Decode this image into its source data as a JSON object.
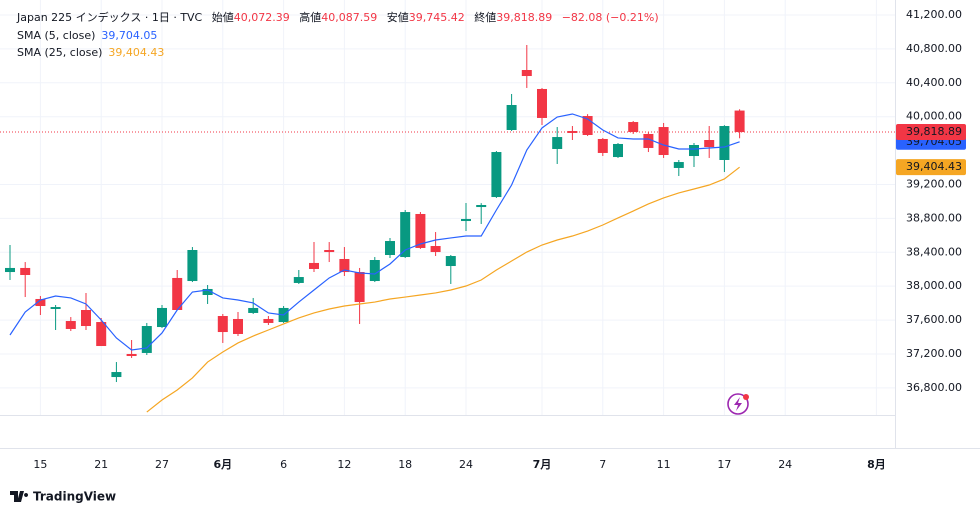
{
  "chart_data": {
    "type": "candlestick",
    "header": {
      "symbol": "Japan 225 インデックス · 1日 · TVC",
      "open_label": "始値",
      "open_value": "40,072.39",
      "high_label": "高値",
      "high_value": "40,087.59",
      "low_label": "安値",
      "low_value": "39,745.42",
      "close_label": "終値",
      "close_value": "39,818.89",
      "change": "−82.08 (−0.21%)"
    },
    "categories": [
      null,
      null,
      "15",
      null,
      null,
      null,
      "21",
      null,
      null,
      null,
      "27",
      null,
      null,
      null,
      "6月",
      null,
      null,
      null,
      "6",
      null,
      null,
      null,
      "12",
      null,
      null,
      null,
      "18",
      null,
      null,
      null,
      "24",
      null,
      null,
      null,
      null,
      "7月",
      null,
      null,
      null,
      "7",
      null,
      null,
      null,
      "11",
      null,
      null,
      null,
      "17",
      null,
      null,
      null,
      "24",
      null,
      null,
      null,
      null,
      null,
      "8月"
    ],
    "open": [
      38167,
      38215,
      37849,
      37731,
      37589,
      37719,
      37577,
      36928,
      37200,
      37212,
      37518,
      38097,
      38061,
      37896,
      37648,
      37613,
      37684,
      37613,
      37577,
      38038,
      38274,
      38427,
      38321,
      38167,
      38061,
      38368,
      38344,
      38852,
      38474,
      38238,
      38769,
      38934,
      39052,
      39843,
      40551,
      40327,
      39619,
      39831,
      40008,
      39737,
      39524,
      39937,
      39796,
      39878,
      39395,
      39536,
      39725,
      39489,
      40072.39,
      null,
      null,
      null,
      null,
      null,
      null,
      null,
      null,
      null
    ],
    "high": [
      38486,
      38285,
      37884,
      37778,
      37636,
      37920,
      37625,
      37105,
      37365,
      37566,
      37778,
      38191,
      38462,
      38014,
      37672,
      37695,
      37861,
      37648,
      37766,
      38191,
      38521,
      38521,
      38462,
      38215,
      38344,
      38569,
      38899,
      38875,
      38639,
      38368,
      38982,
      38980,
      39595,
      40268,
      40846,
      40339,
      39878,
      39890,
      40030,
      39749,
      39690,
      39949,
      39819,
      39926,
      39489,
      39690,
      39890,
      39900,
      40087.59,
      null,
      null,
      null,
      null,
      null,
      null,
      null,
      null,
      null
    ],
    "low": [
      38073,
      37872,
      37660,
      37483,
      37471,
      37483,
      37294,
      36869,
      37153,
      37188,
      37507,
      37719,
      38049,
      37790,
      37330,
      37412,
      37672,
      37542,
      37566,
      38026,
      38167,
      38285,
      38120,
      37554,
      38049,
      38333,
      38333,
      38440,
      38356,
      38026,
      38651,
      38734,
      39041,
      39831,
      40339,
      39902,
      39442,
      39725,
      39772,
      39536,
      39513,
      39796,
      39583,
      39513,
      39300,
      39406,
      39513,
      39347,
      39745.42,
      null,
      null,
      null,
      null,
      null,
      null,
      null,
      null,
      null
    ],
    "close": [
      38215,
      38132,
      37766,
      37754,
      37495,
      37530,
      37294,
      36987,
      37176,
      37530,
      37743,
      37719,
      38427,
      37967,
      37459,
      37436,
      37743,
      37566,
      37743,
      38108,
      38203,
      38403,
      38167,
      37813,
      38309,
      38533,
      38875,
      38451,
      38403,
      38356,
      38793,
      38958,
      39583,
      40138,
      40480,
      39985,
      39760,
      39808,
      39784,
      39572,
      39678,
      39819,
      39631,
      39548,
      39465,
      39666,
      39642,
      39890,
      39818.89,
      null,
      null,
      null,
      null,
      null,
      null,
      null,
      null,
      null
    ],
    "up_color": "#089981",
    "down_color": "#f23645",
    "last_price_label": "39,818.89",
    "series": [
      {
        "name": "SMA (5, close)",
        "color": "#2962ff",
        "last_label": "39,704.05",
        "values": [
          37424,
          37695,
          37837,
          37884,
          37861,
          37790,
          37601,
          37389,
          37247,
          37271,
          37448,
          37719,
          37931,
          37955,
          37861,
          37837,
          37802,
          37684,
          37660,
          37813,
          37955,
          38097,
          38191,
          38156,
          38144,
          38262,
          38427,
          38498,
          38545,
          38569,
          38592,
          38592,
          38899,
          39194,
          39607,
          39867,
          39996,
          40032,
          39973,
          39843,
          39749,
          39737,
          39737,
          39666,
          39619,
          39619,
          39631,
          39642,
          39704.05,
          null,
          null,
          null,
          null,
          null,
          null,
          null,
          null,
          null
        ]
      },
      {
        "name": "SMA (25, close)",
        "color": "#f5a623",
        "last_label": "39,404.43",
        "values": [
          null,
          null,
          null,
          null,
          null,
          null,
          null,
          null,
          null,
          36515,
          36657,
          36775,
          36917,
          37105,
          37223,
          37330,
          37412,
          37483,
          37554,
          37625,
          37684,
          37731,
          37766,
          37790,
          37813,
          37849,
          37872,
          37896,
          37920,
          37955,
          38002,
          38073,
          38191,
          38297,
          38403,
          38486,
          38545,
          38592,
          38651,
          38722,
          38805,
          38887,
          38970,
          39041,
          39100,
          39147,
          39194,
          39265,
          39404.43,
          null,
          null,
          null,
          null,
          null,
          null,
          null,
          null,
          null
        ]
      }
    ],
    "ylim": [
      36480,
      41377
    ],
    "yticks": [
      {
        "value": 36800,
        "label": "36,800.00"
      },
      {
        "value": 37200,
        "label": "37,200.00"
      },
      {
        "value": 37600,
        "label": "37,600.00"
      },
      {
        "value": 38000,
        "label": "38,000.00"
      },
      {
        "value": 38400,
        "label": "38,400.00"
      },
      {
        "value": 38800,
        "label": "38,800.00"
      },
      {
        "value": 39200,
        "label": "39,200.00"
      },
      {
        "value": 40000,
        "label": "40,000.00"
      },
      {
        "value": 40400,
        "label": "40,400.00"
      },
      {
        "value": 40800,
        "label": "40,800.00"
      },
      {
        "value": 41200,
        "label": "41,200.00"
      }
    ],
    "grid": true,
    "brand": "TradingView"
  }
}
